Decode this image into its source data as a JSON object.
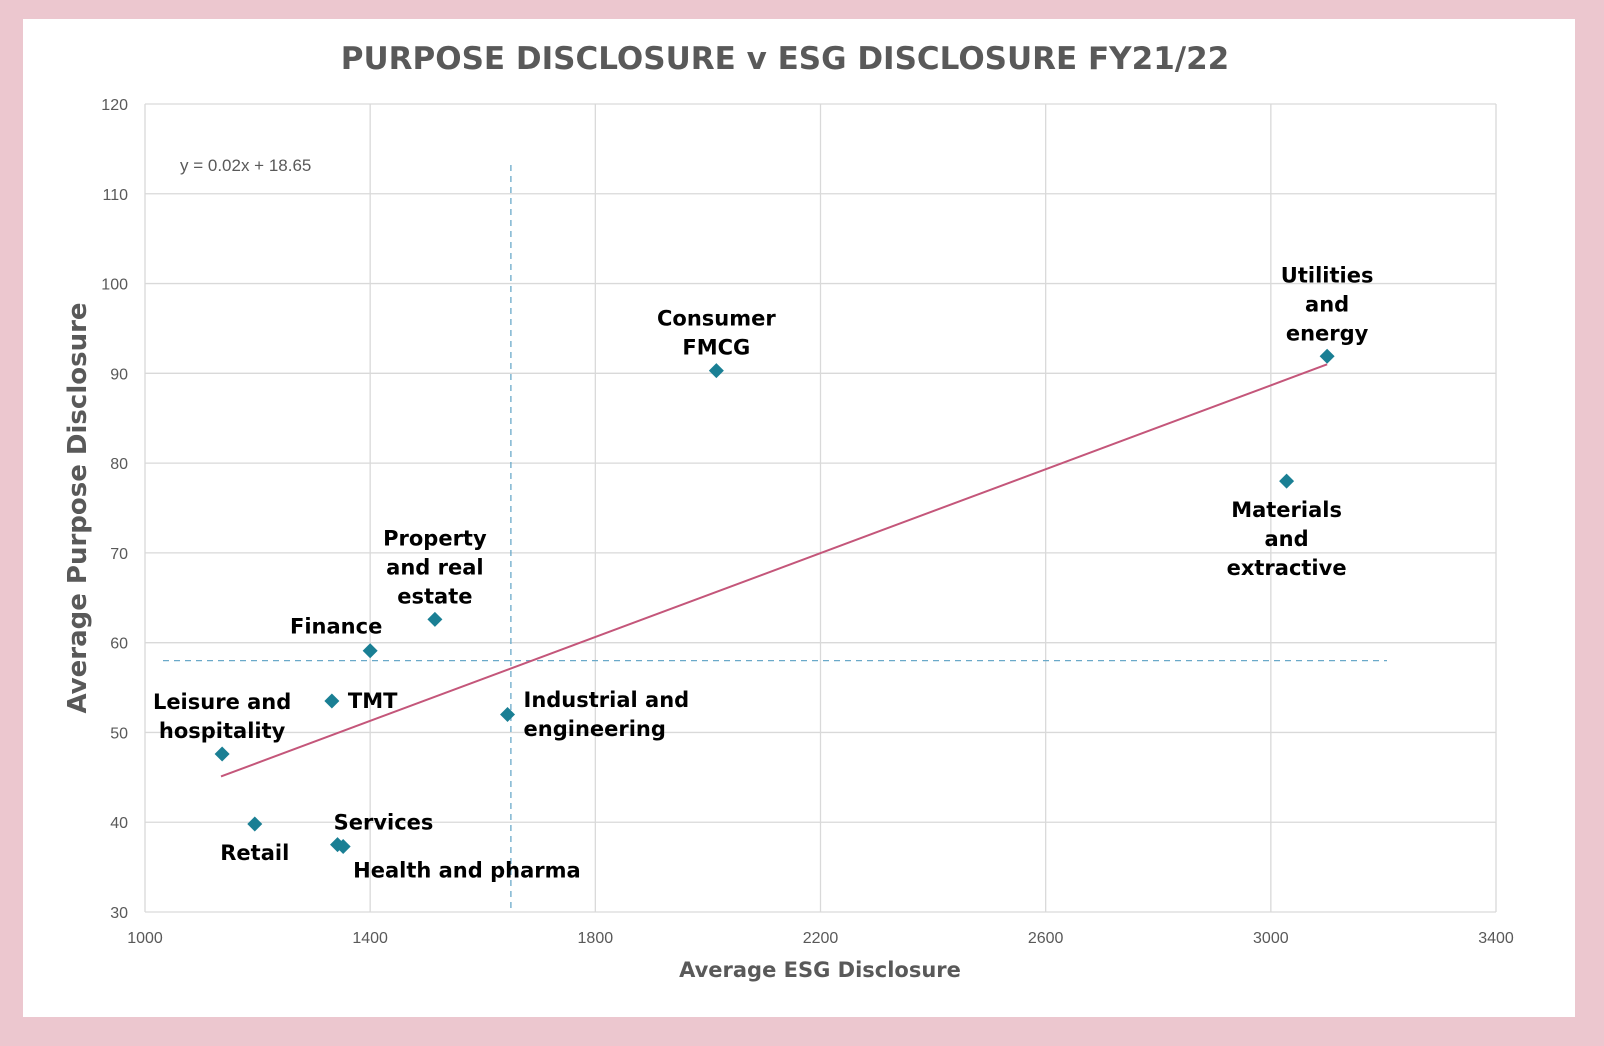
{
  "chart_data": {
    "type": "scatter",
    "title": "PURPOSE DISCLOSURE v ESG DISCLOSURE FY21/22",
    "xlabel": "Average ESG Disclosure",
    "ylabel": "Average Purpose Disclosure",
    "xlim": [
      1000,
      3400
    ],
    "ylim": [
      30,
      120
    ],
    "xticks": [
      1000,
      1400,
      1800,
      2200,
      2600,
      3000,
      3400
    ],
    "yticks": [
      30,
      40,
      50,
      60,
      70,
      80,
      90,
      100,
      110,
      120
    ],
    "grid": true,
    "legend": "none",
    "trendline": {
      "equation": "y = 0.02x + 18.65",
      "from": [
        1135,
        45.1
      ],
      "to": [
        3100,
        91.0
      ],
      "color": "#c4567a"
    },
    "reference_lines": {
      "x": 1650,
      "y": 58,
      "color": "#6aa9c9"
    },
    "marker_color": "#1a7f94",
    "points": [
      {
        "label": [
          "Leisure and",
          "hospitality"
        ],
        "x": 1137,
        "y": 47.6,
        "label_pos": "above"
      },
      {
        "label": [
          "Retail"
        ],
        "x": 1195,
        "y": 39.8,
        "label_pos": "below"
      },
      {
        "label": [
          "TMT"
        ],
        "x": 1332,
        "y": 53.5,
        "label_pos": "right"
      },
      {
        "label": [
          "Services"
        ],
        "x": 1342,
        "y": 37.5,
        "label_pos": "above-right"
      },
      {
        "label": [
          "Health and pharma"
        ],
        "x": 1352,
        "y": 37.3,
        "label_pos": "below-right"
      },
      {
        "label": [
          "Finance"
        ],
        "x": 1400,
        "y": 59.1,
        "label_pos": "above-left"
      },
      {
        "label": [
          "Property",
          "and real",
          "estate"
        ],
        "x": 1515,
        "y": 62.6,
        "label_pos": "above"
      },
      {
        "label": [
          "Industrial and",
          "engineering"
        ],
        "x": 1644,
        "y": 52.0,
        "label_pos": "right"
      },
      {
        "label": [
          "Consumer",
          "FMCG"
        ],
        "x": 2015,
        "y": 90.3,
        "label_pos": "above"
      },
      {
        "label": [
          "Materials",
          "and",
          "extractive"
        ],
        "x": 3028,
        "y": 78.0,
        "label_pos": "below"
      },
      {
        "label": [
          "Utilities",
          "and",
          "energy"
        ],
        "x": 3100,
        "y": 91.9,
        "label_pos": "above"
      }
    ]
  }
}
